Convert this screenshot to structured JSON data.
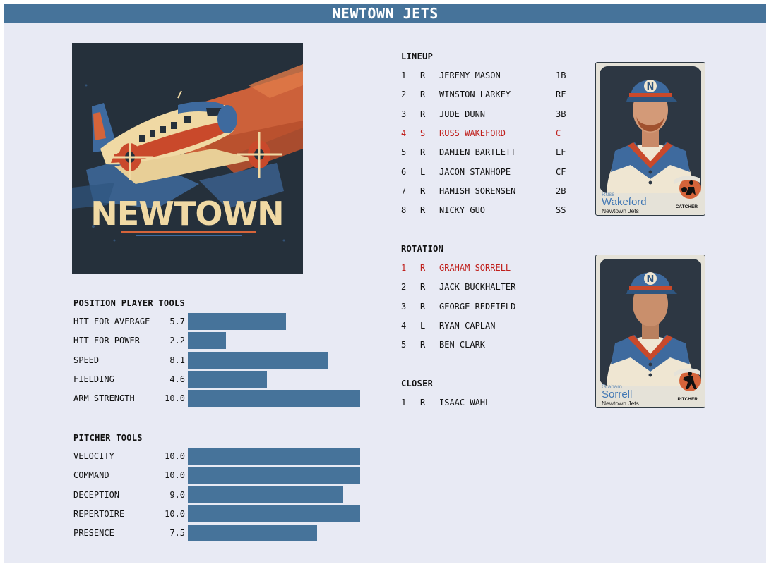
{
  "header": {
    "title": "NEWTOWN JETS"
  },
  "logo": {
    "text": "NEWTOWN",
    "colors": {
      "bg": "#25303b",
      "orange": "#d5643a",
      "blue": "#3e6a9e",
      "cream": "#f0d9a4"
    }
  },
  "position_tools": {
    "title": "POSITION PLAYER TOOLS",
    "max": 10,
    "items": [
      {
        "label": "HIT FOR AVERAGE",
        "value": "5.7",
        "score": 5.7
      },
      {
        "label": "HIT FOR POWER",
        "value": "2.2",
        "score": 2.2
      },
      {
        "label": "SPEED",
        "value": "8.1",
        "score": 8.1
      },
      {
        "label": "FIELDING",
        "value": "4.6",
        "score": 4.6
      },
      {
        "label": "ARM STRENGTH",
        "value": "10.0",
        "score": 10.0
      }
    ]
  },
  "pitcher_tools": {
    "title": "PITCHER TOOLS",
    "max": 10,
    "items": [
      {
        "label": "VELOCITY",
        "value": "10.0",
        "score": 10.0
      },
      {
        "label": "COMMAND",
        "value": "10.0",
        "score": 10.0
      },
      {
        "label": "DECEPTION",
        "value": "9.0",
        "score": 9.0
      },
      {
        "label": "REPERTOIRE",
        "value": "10.0",
        "score": 10.0
      },
      {
        "label": "PRESENCE",
        "value": "7.5",
        "score": 7.5
      }
    ]
  },
  "lineup": {
    "title": "LINEUP",
    "rows": [
      {
        "num": "1",
        "hand": "R",
        "name": "JEREMY MASON",
        "pos": "1B",
        "highlight": false
      },
      {
        "num": "2",
        "hand": "R",
        "name": "WINSTON LARKEY",
        "pos": "RF",
        "highlight": false
      },
      {
        "num": "3",
        "hand": "R",
        "name": "JUDE DUNN",
        "pos": "3B",
        "highlight": false
      },
      {
        "num": "4",
        "hand": "S",
        "name": "RUSS WAKEFORD",
        "pos": "C",
        "highlight": true
      },
      {
        "num": "5",
        "hand": "R",
        "name": "DAMIEN BARTLETT",
        "pos": "LF",
        "highlight": false
      },
      {
        "num": "6",
        "hand": "L",
        "name": "JACON STANHOPE",
        "pos": "CF",
        "highlight": false
      },
      {
        "num": "7",
        "hand": "R",
        "name": "HAMISH SORENSEN",
        "pos": "2B",
        "highlight": false
      },
      {
        "num": "8",
        "hand": "R",
        "name": "NICKY GUO",
        "pos": "SS",
        "highlight": false
      }
    ]
  },
  "rotation": {
    "title": "ROTATION",
    "rows": [
      {
        "num": "1",
        "hand": "R",
        "name": "GRAHAM SORRELL",
        "highlight": true
      },
      {
        "num": "2",
        "hand": "R",
        "name": "JACK BUCKHALTER",
        "highlight": false
      },
      {
        "num": "3",
        "hand": "R",
        "name": "GEORGE REDFIELD",
        "highlight": false
      },
      {
        "num": "4",
        "hand": "L",
        "name": "RYAN CAPLAN",
        "highlight": false
      },
      {
        "num": "5",
        "hand": "R",
        "name": "BEN CLARK",
        "highlight": false
      }
    ]
  },
  "closer": {
    "title": "CLOSER",
    "rows": [
      {
        "num": "1",
        "hand": "R",
        "name": "ISAAC WAHL",
        "highlight": false
      }
    ]
  },
  "cards": [
    {
      "first": "Russ",
      "last": "Wakeford",
      "team": "Newtown Jets",
      "position": "CATCHER",
      "cap_letter": "N",
      "beard": true
    },
    {
      "first": "Graham",
      "last": "Sorrell",
      "team": "Newtown Jets",
      "position": "PITCHER",
      "cap_letter": "N",
      "beard": false
    }
  ],
  "colors": {
    "accent": "#46739a",
    "highlight": "#c0201c",
    "background": "#e8eaf4"
  }
}
